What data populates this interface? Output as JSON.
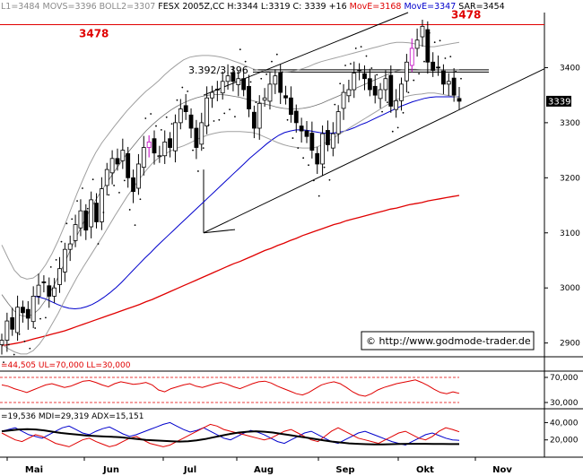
{
  "header": {
    "parts": [
      {
        "text": "L1=3484 MOVS=3396 BOLL2=3307",
        "color": "#8a8a8a"
      },
      {
        "text": " FESX 2005Z,CC H:3344 L:3319 C: 3339 +16 ",
        "color": "#000000"
      },
      {
        "text": "MovE=3168",
        "color": "#e00000"
      },
      {
        "text": " ",
        "color": "#000000"
      },
      {
        "text": "MovE=3347",
        "color": "#0000cc"
      },
      {
        "text": " SAR=3454",
        "color": "#000000"
      }
    ]
  },
  "copyright": "© http://www.godmode-trader.de",
  "chart_data": [
    {
      "type": "candlestick",
      "instrument": "FESX 2005Z",
      "x_labels": [
        "Mai",
        "Jun",
        "Jul",
        "Aug",
        "Sep",
        "Okt",
        "Nov"
      ],
      "y_ticks": [
        2900,
        3000,
        3100,
        3200,
        3300,
        3400
      ],
      "ylim": [
        2875,
        3500
      ],
      "last_price_label": "3339",
      "resistance": {
        "level": 3478,
        "label": "3478"
      },
      "resistance_zone": {
        "label": "3.392/3.396",
        "low": 3392,
        "high": 3396
      },
      "trend_channel": {
        "start": "Jul",
        "lower_start": 3100,
        "upper_start": 3350
      },
      "close": [
        2905,
        2940,
        2925,
        2965,
        2955,
        2945,
        2985,
        3005,
        3010,
        2985,
        3000,
        3035,
        3070,
        3080,
        3115,
        3140,
        3105,
        3160,
        3120,
        3180,
        3215,
        3235,
        3225,
        3250,
        3200,
        3175,
        3225,
        3255,
        3265,
        3245,
        3240,
        3265,
        3255,
        3300,
        3325,
        3320,
        3290,
        3255,
        3300,
        3345,
        3355,
        3360,
        3375,
        3385,
        3375,
        3380,
        3360,
        3325,
        3290,
        3335,
        3345,
        3370,
        3385,
        3355,
        3345,
        3315,
        3300,
        3285,
        3275,
        3250,
        3225,
        3280,
        3260,
        3280,
        3320,
        3355,
        3360,
        3390,
        3395,
        3380,
        3360,
        3350,
        3360,
        3380,
        3330,
        3340,
        3370,
        3410,
        3435,
        3450,
        3475,
        3410,
        3395,
        3400,
        3370,
        3375,
        3350,
        3339
      ],
      "series": [
        {
          "name": "MovE",
          "last": 3168,
          "color": "#e00000",
          "values": [
            2895,
            2897,
            2899,
            2901,
            2904,
            2907,
            2910,
            2913,
            2916,
            2919,
            2922,
            2926,
            2930,
            2934,
            2938,
            2942,
            2946,
            2950,
            2954,
            2958,
            2962,
            2966,
            2970,
            2975,
            2979,
            2984,
            2989,
            2994,
            2999,
            3004,
            3009,
            3014,
            3019,
            3024,
            3029,
            3034,
            3039,
            3044,
            3048,
            3053,
            3058,
            3063,
            3068,
            3072,
            3077,
            3081,
            3086,
            3090,
            3095,
            3099,
            3103,
            3107,
            3111,
            3115,
            3118,
            3122,
            3125,
            3128,
            3131,
            3134,
            3137,
            3140,
            3143,
            3145,
            3148,
            3151,
            3153,
            3155,
            3158,
            3160,
            3162,
            3164,
            3166,
            3168
          ]
        },
        {
          "name": "MovE",
          "last": 3347,
          "color": "#0000cc",
          "values": [
            2985,
            2983,
            2980,
            2975,
            2970,
            2966,
            2963,
            2962,
            2963,
            2966,
            2970,
            2976,
            2983,
            2991,
            3000,
            3010,
            3021,
            3032,
            3043,
            3054,
            3064,
            3075,
            3085,
            3095,
            3105,
            3115,
            3125,
            3135,
            3145,
            3155,
            3165,
            3175,
            3185,
            3195,
            3205,
            3215,
            3225,
            3235,
            3244,
            3253,
            3262,
            3270,
            3277,
            3282,
            3285,
            3287,
            3287,
            3286,
            3284,
            3282,
            3281,
            3281,
            3282,
            3284,
            3287,
            3291,
            3296,
            3300,
            3305,
            3310,
            3315,
            3320,
            3325,
            3330,
            3334,
            3338,
            3341,
            3344,
            3346,
            3347,
            3347,
            3347,
            3347,
            3347
          ]
        },
        {
          "name": "MOVS",
          "last": 3396,
          "color": "#000000",
          "values": [
            2988,
            2972,
            2958,
            2950,
            2948,
            2952,
            2962,
            2978,
            2998,
            3020,
            3045,
            3070,
            3095,
            3118,
            3140,
            3160,
            3178,
            3195,
            3212,
            3228,
            3244,
            3258,
            3272,
            3285,
            3296,
            3306,
            3315,
            3323,
            3330,
            3336,
            3341,
            3345,
            3348,
            3350,
            3351,
            3351,
            3350,
            3348,
            3346,
            3343,
            3340,
            3337,
            3334,
            3331,
            3328,
            3326,
            3325,
            3325,
            3326,
            3328,
            3331,
            3335,
            3340,
            3345,
            3350,
            3355,
            3360,
            3365,
            3370,
            3375,
            3380,
            3385,
            3390,
            3394,
            3396,
            3397,
            3397,
            3396,
            3396,
            3396,
            3396,
            3396,
            3396,
            3396
          ]
        },
        {
          "name": "BOLL",
          "color": "#a0a0a0"
        },
        {
          "name": "SAR",
          "last": 3454,
          "color": "#000000"
        }
      ]
    },
    {
      "type": "line",
      "label": "=44,505 UL=70,000 LL=30,000",
      "ylim": [
        20000,
        80000
      ],
      "y_ticks": [
        70000,
        30000
      ],
      "tick_labels": [
        "70,000",
        "30,000"
      ],
      "upper_level": 70000,
      "lower_level": 30000,
      "series": [
        {
          "name": "",
          "color": "#e00000",
          "values": [
            58000,
            56000,
            52000,
            49000,
            46000,
            50000,
            54000,
            58000,
            60000,
            57000,
            54000,
            56000,
            60000,
            64000,
            65000,
            62000,
            58000,
            55000,
            60000,
            63000,
            61000,
            59000,
            60000,
            62000,
            58000,
            50000,
            47000,
            52000,
            55000,
            58000,
            60000,
            56000,
            54000,
            57000,
            60000,
            62000,
            59000,
            55000,
            52000,
            56000,
            60000,
            63000,
            64000,
            61000,
            56000,
            52000,
            48000,
            44000,
            42000,
            46000,
            52000,
            58000,
            61000,
            63000,
            60000,
            54000,
            47000,
            42000,
            40000,
            44000,
            50000,
            54000,
            57000,
            60000,
            62000,
            64000,
            66000,
            62000,
            57000,
            51000,
            46000,
            44000,
            47000,
            44505
          ]
        }
      ]
    },
    {
      "type": "line",
      "label": "=19,536 MDI=29,319 ADX=15,151",
      "ylim": [
        0,
        56000
      ],
      "y_ticks": [
        40000,
        20000
      ],
      "tick_labels": [
        "40,000",
        "20,000"
      ],
      "series": [
        {
          "name": "",
          "color": "#0000cc",
          "values": [
            30000,
            32000,
            34000,
            30000,
            26000,
            24000,
            22000,
            26000,
            30000,
            34000,
            36000,
            32000,
            28000,
            26000,
            30000,
            33000,
            35000,
            31000,
            27000,
            24000,
            26000,
            29000,
            32000,
            35000,
            38000,
            40000,
            36000,
            32000,
            29000,
            31000,
            34000,
            30000,
            26000,
            22000,
            20000,
            24000,
            28000,
            31000,
            29000,
            26000,
            22000,
            18000,
            16000,
            20000,
            24000,
            28000,
            30000,
            26000,
            22000,
            18000,
            16000,
            20000,
            24000,
            28000,
            30000,
            27000,
            24000,
            21000,
            18000,
            16000,
            14000,
            18000,
            22000,
            26000,
            28000,
            25000,
            22000,
            20000,
            19536
          ]
        },
        {
          "name": "MDI",
          "last": 29319,
          "color": "#e00000",
          "values": [
            28000,
            24000,
            20000,
            18000,
            22000,
            26000,
            24000,
            20000,
            16000,
            14000,
            12000,
            16000,
            20000,
            22000,
            18000,
            15000,
            12000,
            14000,
            18000,
            22000,
            24000,
            20000,
            16000,
            14000,
            12000,
            14000,
            18000,
            22000,
            26000,
            30000,
            34000,
            38000,
            36000,
            32000,
            30000,
            28000,
            26000,
            24000,
            22000,
            20000,
            22000,
            26000,
            30000,
            32000,
            28000,
            24000,
            20000,
            18000,
            24000,
            30000,
            34000,
            30000,
            26000,
            22000,
            20000,
            18000,
            16000,
            20000,
            24000,
            28000,
            30000,
            26000,
            22000,
            20000,
            24000,
            30000,
            34000,
            32000,
            29319
          ]
        },
        {
          "name": "ADX",
          "last": 15151,
          "color": "#000000",
          "values": [
            30000,
            31000,
            32000,
            32500,
            32000,
            31000,
            29500,
            28000,
            27000,
            26000,
            25000,
            24500,
            24000,
            23500,
            23000,
            22000,
            21000,
            20000,
            19500,
            19000,
            18500,
            18000,
            18500,
            19500,
            21000,
            23000,
            25000,
            27000,
            28500,
            29500,
            30000,
            29500,
            28500,
            27000,
            25500,
            24000,
            22500,
            21000,
            19500,
            18000,
            17000,
            16000,
            15500,
            15000,
            14800,
            14800,
            15000,
            15200,
            15500,
            15500,
            15400,
            15300,
            15200,
            15100,
            15151
          ]
        }
      ]
    }
  ]
}
